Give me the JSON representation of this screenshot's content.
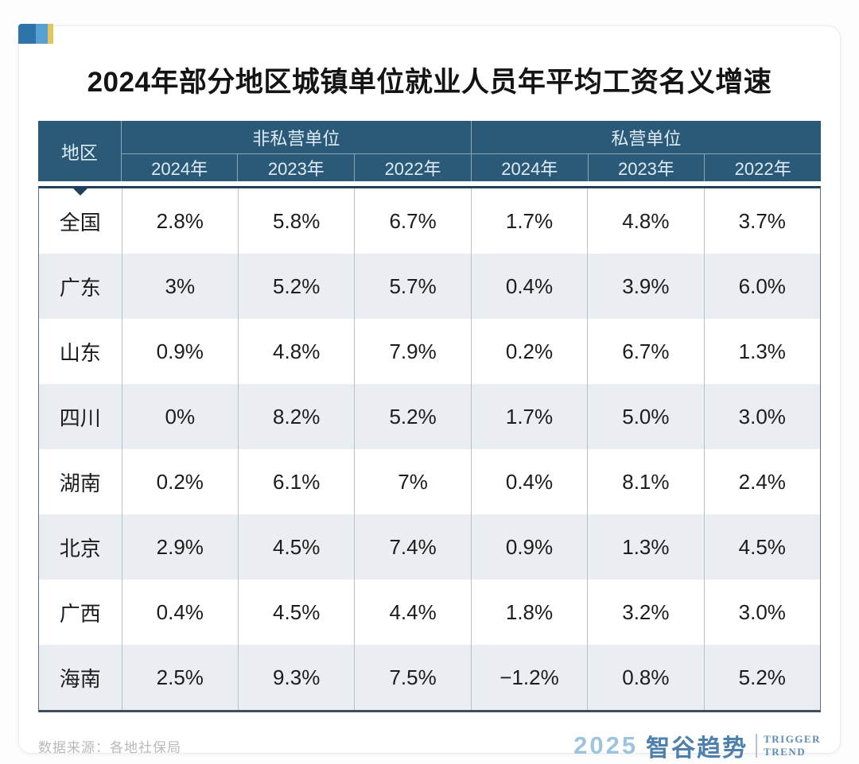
{
  "title": "2024年部分地区城镇单位就业人员年平均工资名义增速",
  "table": {
    "region_header": "地区",
    "groups": [
      {
        "label": "非私营单位",
        "years": [
          "2024年",
          "2023年",
          "2022年"
        ]
      },
      {
        "label": "私营单位",
        "years": [
          "2024年",
          "2023年",
          "2022年"
        ]
      }
    ]
  },
  "chart_data": {
    "type": "table",
    "title": "2024年部分地区城镇单位就业人员年平均工资名义增速",
    "column_groups": [
      "非私营单位",
      "私营单位"
    ],
    "columns": [
      "地区",
      "非私营单位 2024年",
      "非私营单位 2023年",
      "非私营单位 2022年",
      "私营单位 2024年",
      "私营单位 2023年",
      "私营单位 2022年"
    ],
    "rows": [
      [
        "全国",
        "2.8%",
        "5.8%",
        "6.7%",
        "1.7%",
        "4.8%",
        "3.7%"
      ],
      [
        "广东",
        "3%",
        "5.2%",
        "5.7%",
        "0.4%",
        "3.9%",
        "6.0%"
      ],
      [
        "山东",
        "0.9%",
        "4.8%",
        "7.9%",
        "0.2%",
        "6.7%",
        "1.3%"
      ],
      [
        "四川",
        "0%",
        "8.2%",
        "5.2%",
        "1.7%",
        "5.0%",
        "3.0%"
      ],
      [
        "湖南",
        "0.2%",
        "6.1%",
        "7%",
        "0.4%",
        "8.1%",
        "2.4%"
      ],
      [
        "北京",
        "2.9%",
        "4.5%",
        "7.4%",
        "0.9%",
        "1.3%",
        "4.5%"
      ],
      [
        "广西",
        "0.4%",
        "4.5%",
        "4.4%",
        "1.8%",
        "3.2%",
        "3.0%"
      ],
      [
        "海南",
        "2.5%",
        "9.3%",
        "7.5%",
        "−1.2%",
        "0.8%",
        "5.2%"
      ]
    ],
    "source": "数据来源：各地社保局"
  },
  "footer": {
    "source": "数据来源：各地社保局",
    "logo_year": "2025",
    "logo_brand": "智谷趋势",
    "logo_en_line1": "TRIGGER",
    "logo_en_line2": "TREND"
  },
  "brand_colors": {
    "header_blue": "#2b5a78",
    "stripe_gray": "#eaedf1",
    "chip_blue_dark": "#2e74ab",
    "chip_blue_light": "#57a0d3",
    "chip_yellow": "#e2c65b",
    "logo_blue": "#4d80ac"
  }
}
